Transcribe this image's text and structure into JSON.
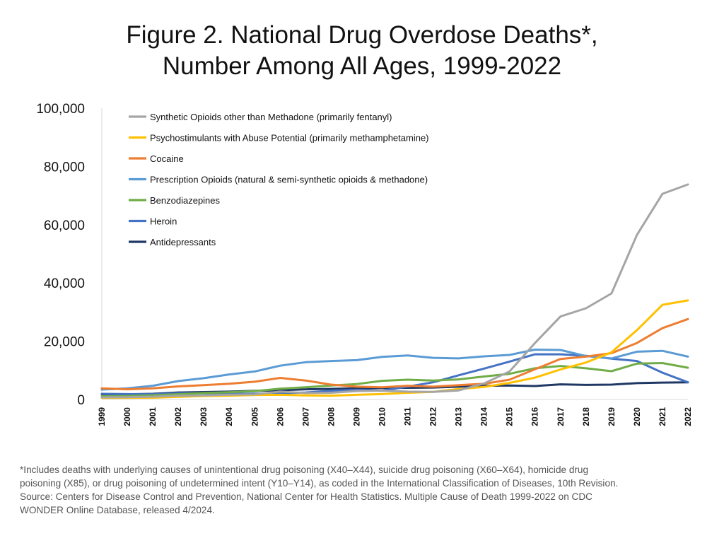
{
  "title_lines": [
    "Figure 2. National Drug Overdose Deaths*,",
    "Number Among All Ages, 1999-2022"
  ],
  "footnote_lines": [
    "*Includes deaths with underlying causes of unintentional drug poisoning (X40–X44), suicide drug poisoning (X60–X64), homicide drug",
    "poisoning (X85), or drug poisoning of undetermined intent (Y10–Y14), as coded in the International Classification of Diseases, 10th Revision.",
    "Source: Centers for Disease Control and Prevention, National Center for Health Statistics. Multiple Cause of Death 1999-2022 on CDC",
    "WONDER Online Database, released 4/2024."
  ],
  "chart_data": {
    "type": "line",
    "title": "Figure 2. National Drug Overdose Deaths*, Number Among All Ages, 1999-2022",
    "xlabel": "",
    "ylabel": "",
    "x": [
      "1999",
      "2000",
      "2001",
      "2002",
      "2003",
      "2004",
      "2005",
      "2006",
      "2007",
      "2008",
      "2009",
      "2010",
      "2011",
      "2012",
      "2013",
      "2014",
      "2015",
      "2016",
      "2017",
      "2018",
      "2019",
      "2020",
      "2021",
      "2022"
    ],
    "ylim": [
      0,
      100000
    ],
    "yticks": [
      0,
      20000,
      40000,
      60000,
      80000,
      100000
    ],
    "ytick_labels": [
      "0",
      "20,000",
      "40,000",
      "60,000",
      "80,000",
      "100,000"
    ],
    "grid": false,
    "legend_position": "top",
    "series": [
      {
        "name": "Synthetic Opioids other than Methadone (primarily fentanyl)",
        "color": "#a5a5a5",
        "values": [
          730,
          780,
          950,
          1300,
          1400,
          1660,
          1740,
          2700,
          2200,
          2300,
          2900,
          3000,
          2700,
          2600,
          3100,
          5500,
          9600,
          19400,
          28500,
          31300,
          36400,
          56500,
          70600,
          73800
        ]
      },
      {
        "name": "Psychostimulants with Abuse Potential (primarily methamphetamine)",
        "color": "#ffc000",
        "values": [
          550,
          580,
          600,
          900,
          1200,
          1300,
          1550,
          1600,
          1400,
          1300,
          1600,
          1850,
          2300,
          2600,
          3600,
          4300,
          5700,
          7500,
          10300,
          12700,
          16200,
          23800,
          32500,
          34000
        ]
      },
      {
        "name": "Cocaine",
        "color": "#ed7d31",
        "values": [
          3800,
          3500,
          3800,
          4500,
          4900,
          5400,
          6100,
          7400,
          6500,
          5100,
          4400,
          4200,
          4700,
          4400,
          4900,
          5400,
          6800,
          10400,
          13900,
          14700,
          15900,
          19400,
          24500,
          27600
        ]
      },
      {
        "name": "Prescription Opioids (natural & semi-synthetic opioids & methadone)",
        "color": "#5b9bd5",
        "values": [
          3400,
          3800,
          4700,
          6300,
          7300,
          8600,
          9600,
          11600,
          12800,
          13200,
          13500,
          14600,
          15100,
          14300,
          14100,
          14800,
          15300,
          17100,
          17000,
          14900,
          14100,
          16400,
          16700,
          14700
        ]
      },
      {
        "name": "Benzodiazepines",
        "color": "#70ad47",
        "values": [
          1100,
          1200,
          1450,
          1800,
          2200,
          2500,
          2900,
          3700,
          4200,
          4800,
          5300,
          6400,
          6800,
          6500,
          6900,
          7900,
          8800,
          10700,
          11500,
          10700,
          9700,
          12300,
          12500,
          10900
        ]
      },
      {
        "name": "Heroin",
        "color": "#4472c4",
        "values": [
          1950,
          1850,
          1800,
          2100,
          2100,
          1900,
          2000,
          2100,
          2400,
          3000,
          3300,
          3000,
          4400,
          5900,
          8300,
          10600,
          13000,
          15500,
          15500,
          15000,
          14000,
          13200,
          9200,
          5900
        ]
      },
      {
        "name": "Antidepressants",
        "color": "#1f3864",
        "values": [
          1750,
          1800,
          1950,
          2400,
          2550,
          2700,
          2950,
          3150,
          3500,
          3650,
          3850,
          3900,
          4000,
          4100,
          4400,
          4700,
          4800,
          4600,
          5200,
          5000,
          5100,
          5600,
          5800,
          5900
        ]
      }
    ]
  }
}
